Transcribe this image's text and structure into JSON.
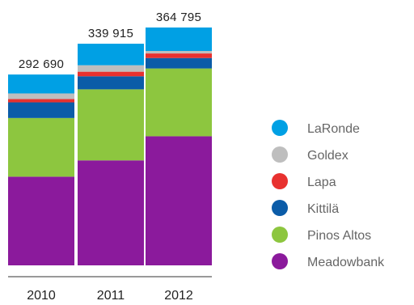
{
  "chart_data": {
    "type": "bar",
    "stacked": true,
    "title": "",
    "xlabel": "",
    "ylabel": "",
    "categories": [
      "2010",
      "2011",
      "2012"
    ],
    "totals": [
      292690,
      339915,
      364795
    ],
    "total_labels": [
      "292 690",
      "339 915",
      "364 795"
    ],
    "series": [
      {
        "name": "Meadowbank",
        "color": "#8B1A9C",
        "values": [
          136000,
          161000,
          198000
        ]
      },
      {
        "name": "Pinos Altos",
        "color": "#8DC63F",
        "values": [
          90000,
          109000,
          104000
        ]
      },
      {
        "name": "Kittilä",
        "color": "#0B5CA8",
        "values": [
          24000,
          20000,
          16000
        ]
      },
      {
        "name": "Lapa",
        "color": "#E8312F",
        "values": [
          5000,
          7000,
          7000
        ]
      },
      {
        "name": "Goldex",
        "color": "#BEBEBE",
        "values": [
          8690,
          9915,
          3795
        ]
      },
      {
        "name": "LaRonde",
        "color": "#00A0E4",
        "values": [
          29000,
          33000,
          36000
        ]
      }
    ],
    "legend": {
      "position": "right",
      "order": [
        "LaRonde",
        "Goldex",
        "Lapa",
        "Kittilä",
        "Pinos Altos",
        "Meadowbank"
      ]
    },
    "ylim": [
      0,
      364795
    ],
    "grid": false
  }
}
